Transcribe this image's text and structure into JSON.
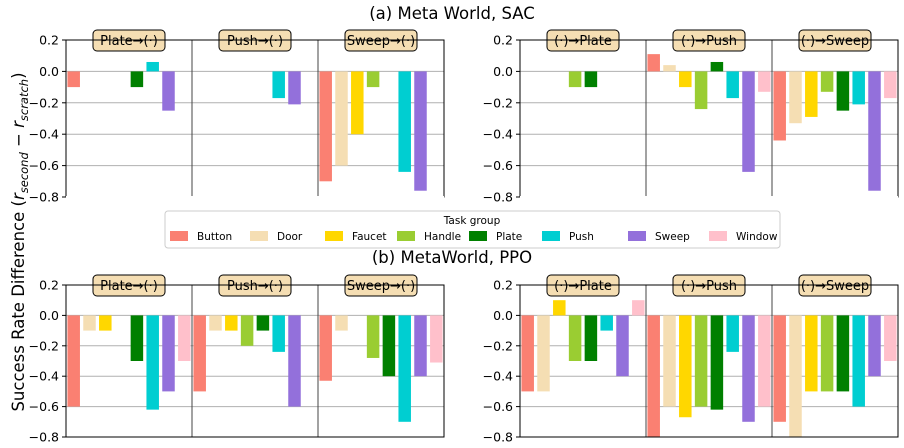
{
  "figure": {
    "ylabel_main": "Success Rate Difference (",
    "ylabel_r1": "r",
    "ylabel_sub1": "second",
    "ylabel_minus": " − ",
    "ylabel_r2": "r",
    "ylabel_sub2": "scratch",
    "ylabel_close": ")",
    "legend": {
      "title": "Task group",
      "entries": [
        {
          "name": "Button",
          "color": "#fa8072"
        },
        {
          "name": "Door",
          "color": "#f5deb3"
        },
        {
          "name": "Faucet",
          "color": "#ffd700"
        },
        {
          "name": "Handle",
          "color": "#9acd32"
        },
        {
          "name": "Plate",
          "color": "#008000"
        },
        {
          "name": "Push",
          "color": "#00ced1"
        },
        {
          "name": "Sweep",
          "color": "#9370db"
        },
        {
          "name": "Window",
          "color": "#ffc0cb"
        }
      ]
    }
  },
  "chart_data": [
    {
      "type": "bar",
      "title": "(a) Meta World, SAC",
      "ylim": [
        -0.8,
        0.2
      ],
      "yticks": [
        "0.2",
        "0.0",
        "−0.2",
        "−0.4",
        "−0.6",
        "−0.8"
      ],
      "series_names": [
        "Button",
        "Door",
        "Faucet",
        "Handle",
        "Plate",
        "Push",
        "Sweep",
        "Window"
      ],
      "groups": [
        {
          "label": "Plate→(·)",
          "values": [
            -0.1,
            null,
            null,
            null,
            -0.1,
            0.06,
            -0.25,
            null
          ]
        },
        {
          "label": "Push→(·)",
          "values": [
            null,
            null,
            null,
            null,
            null,
            -0.17,
            -0.21,
            null
          ]
        },
        {
          "label": "Sweep→(·)",
          "values": [
            -0.7,
            -0.6,
            -0.4,
            -0.1,
            null,
            -0.64,
            -0.76,
            null
          ]
        },
        {
          "label": "(·)→Plate",
          "values": [
            null,
            null,
            null,
            -0.1,
            -0.1,
            null,
            null,
            null
          ]
        },
        {
          "label": "(·)→Push",
          "values": [
            0.11,
            0.04,
            -0.1,
            -0.24,
            0.06,
            -0.17,
            -0.64,
            -0.13
          ]
        },
        {
          "label": "(·)→Sweep",
          "values": [
            -0.44,
            -0.33,
            -0.29,
            -0.13,
            -0.25,
            -0.21,
            -0.76,
            -0.17
          ]
        }
      ]
    },
    {
      "type": "bar",
      "title": "(b) MetaWorld, PPO",
      "ylim": [
        -0.8,
        0.2
      ],
      "yticks": [
        "0.2",
        "0.0",
        "−0.2",
        "−0.4",
        "−0.6",
        "−0.8"
      ],
      "series_names": [
        "Button",
        "Door",
        "Faucet",
        "Handle",
        "Plate",
        "Push",
        "Sweep",
        "Window"
      ],
      "groups": [
        {
          "label": "Plate→(·)",
          "values": [
            -0.6,
            -0.1,
            -0.1,
            null,
            -0.3,
            -0.62,
            -0.5,
            -0.3
          ]
        },
        {
          "label": "Push→(·)",
          "values": [
            -0.5,
            -0.1,
            -0.1,
            -0.2,
            -0.1,
            -0.24,
            -0.6,
            null
          ]
        },
        {
          "label": "Sweep→(·)",
          "values": [
            -0.43,
            -0.1,
            null,
            -0.28,
            -0.4,
            -0.7,
            -0.4,
            -0.31
          ]
        },
        {
          "label": "(·)→Plate",
          "values": [
            -0.5,
            -0.5,
            0.1,
            -0.3,
            -0.3,
            -0.1,
            -0.4,
            0.1
          ]
        },
        {
          "label": "(·)→Push",
          "values": [
            -0.8,
            -0.6,
            -0.67,
            -0.6,
            -0.62,
            -0.24,
            -0.7,
            -0.6
          ]
        },
        {
          "label": "(·)→Sweep",
          "values": [
            -0.7,
            -0.8,
            -0.5,
            -0.5,
            -0.5,
            -0.6,
            -0.4,
            -0.3
          ]
        }
      ]
    }
  ]
}
